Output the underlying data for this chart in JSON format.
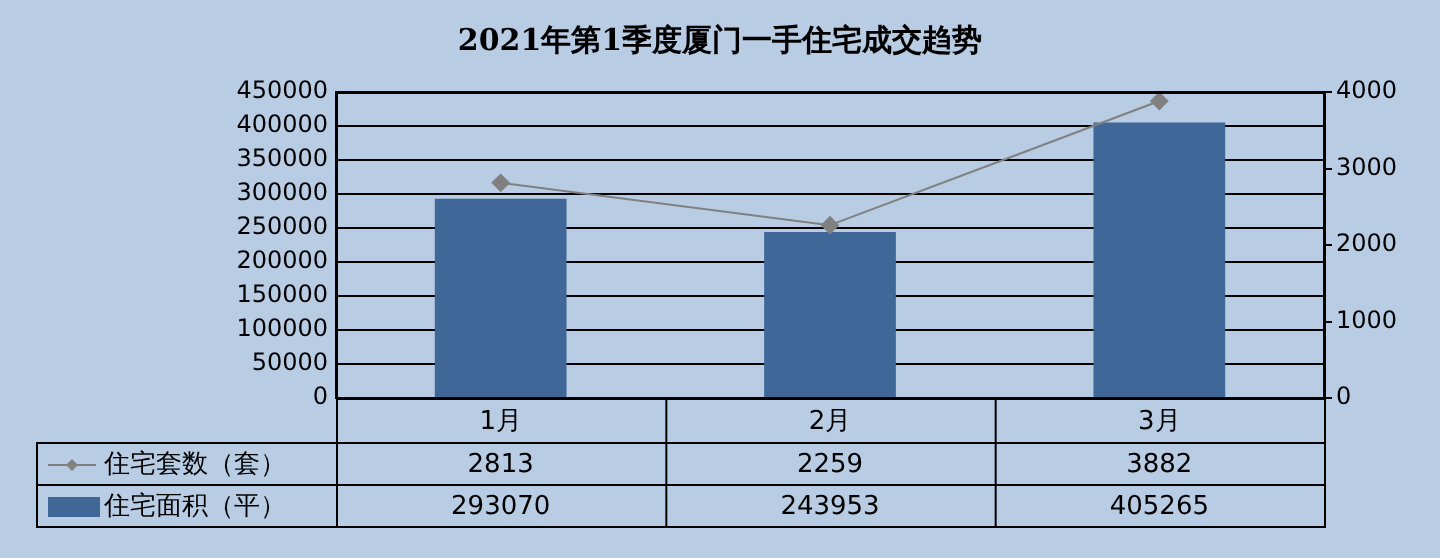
{
  "chart_data": {
    "type": "bar",
    "title": "2021年第1季度厦门一手住宅成交趋势",
    "categories": [
      "1月",
      "2月",
      "3月"
    ],
    "series": [
      {
        "name": "住宅套数（套）",
        "type": "line",
        "axis": "y2",
        "color": "#808080",
        "values": [
          2813,
          2259,
          3882
        ]
      },
      {
        "name": "住宅面积（平）",
        "color": "#3f6898",
        "values": [
          293070,
          243953,
          405265
        ]
      }
    ],
    "ylim": [
      0,
      450000
    ],
    "yticks": [
      0,
      50000,
      100000,
      150000,
      200000,
      250000,
      300000,
      350000,
      400000,
      450000
    ],
    "y2lim": [
      0,
      4000
    ],
    "y2ticks": [
      0,
      1000,
      2000,
      3000,
      4000
    ],
    "grid": "y",
    "legend": "bottom",
    "marker": "diamond",
    "data_labels": true
  }
}
